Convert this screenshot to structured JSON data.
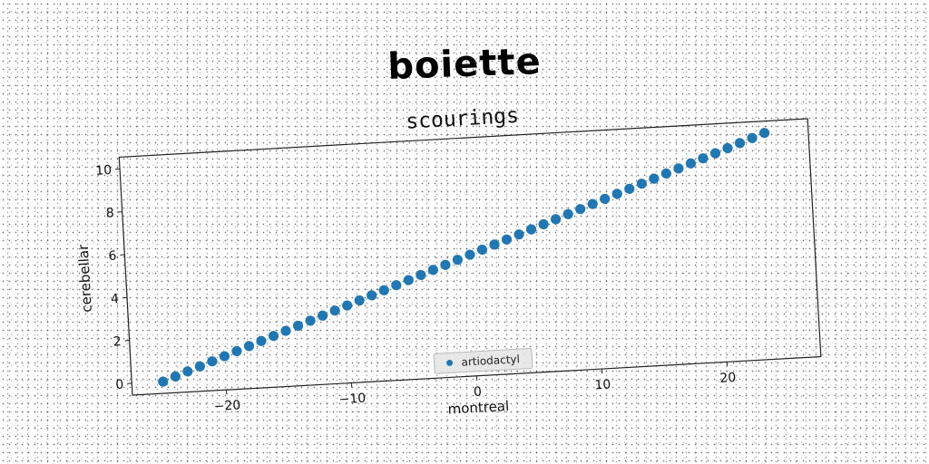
{
  "page": {
    "title": "boiette"
  },
  "chart_data": {
    "type": "scatter",
    "title": "scourings",
    "xlabel": "montreal",
    "ylabel": "cerebellar",
    "xlim": [
      -27.5,
      27.5
    ],
    "ylim": [
      -0.55,
      10.55
    ],
    "xticks": [
      -20,
      -10,
      0,
      10,
      20
    ],
    "yticks": [
      0,
      2,
      4,
      6,
      8,
      10
    ],
    "xtick_labels": [
      "−20",
      "−10",
      "0",
      "10",
      "20"
    ],
    "ytick_labels": [
      "0",
      "2",
      "4",
      "6",
      "8",
      "10"
    ],
    "grid": false,
    "legend_position": "bottom-center",
    "series": [
      {
        "name": "artiodactyl",
        "color": "#1f77b4",
        "x": [
          -25,
          -24,
          -23,
          -22,
          -21,
          -20,
          -19,
          -18,
          -17,
          -16,
          -15,
          -14,
          -13,
          -12,
          -11,
          -10,
          -9,
          -8,
          -7,
          -6,
          -5,
          -4,
          -3,
          -2,
          -1,
          0,
          1,
          2,
          3,
          4,
          5,
          6,
          7,
          8,
          9,
          10,
          11,
          12,
          13,
          14,
          15,
          16,
          17,
          18,
          19,
          20,
          21,
          22,
          23,
          24
        ],
        "y": [
          0,
          0.204,
          0.408,
          0.612,
          0.816,
          1.02,
          1.224,
          1.429,
          1.633,
          1.837,
          2.041,
          2.245,
          2.449,
          2.653,
          2.857,
          3.061,
          3.265,
          3.469,
          3.673,
          3.878,
          4.082,
          4.286,
          4.49,
          4.694,
          4.898,
          5.102,
          5.306,
          5.51,
          5.714,
          5.918,
          6.122,
          6.327,
          6.531,
          6.735,
          6.939,
          7.143,
          7.347,
          7.551,
          7.755,
          7.959,
          8.163,
          8.367,
          8.571,
          8.776,
          8.98,
          9.184,
          9.388,
          9.592,
          9.796,
          10
        ]
      }
    ]
  }
}
